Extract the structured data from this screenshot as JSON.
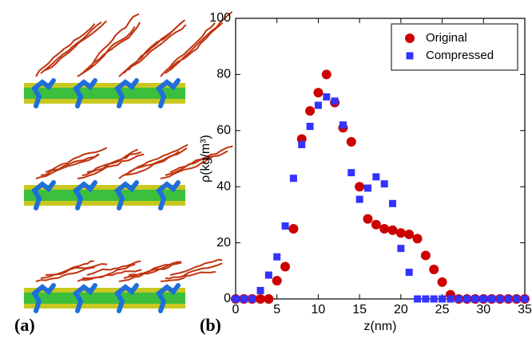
{
  "chart_data": {
    "type": "scatter",
    "panel_labels": [
      "(a)",
      "(b)"
    ],
    "xlabel": "z(nm)",
    "ylabel": "ρ(kg/m³)",
    "xlim": [
      0,
      35
    ],
    "xticks": [
      0,
      5,
      10,
      15,
      20,
      25,
      30,
      35
    ],
    "ylim": [
      0,
      100
    ],
    "yticks": [
      0,
      20,
      40,
      60,
      80,
      100
    ],
    "legend": "upper right",
    "series": [
      {
        "name": "Original",
        "color": "#cc0000",
        "marker": "circle",
        "x": [
          0,
          1,
          2,
          3,
          4,
          5,
          6,
          7,
          8,
          9,
          10,
          11,
          12,
          13,
          14,
          15,
          16,
          17,
          18,
          19,
          20,
          21,
          22,
          23,
          24,
          25,
          26,
          27,
          28,
          29,
          30,
          31,
          32,
          33,
          34,
          35
        ],
        "values": [
          0,
          0,
          0,
          0,
          0,
          6.5,
          11.5,
          25,
          57,
          67,
          73.5,
          80,
          70,
          61,
          56,
          40,
          28.5,
          26.5,
          25,
          24.5,
          23.5,
          23,
          21.5,
          15.5,
          10.5,
          6,
          1.5,
          0,
          0,
          0,
          0,
          0,
          0,
          0,
          0,
          0
        ]
      },
      {
        "name": "Compressed",
        "color": "#3333ff",
        "marker": "square",
        "x": [
          0,
          1,
          2,
          3,
          4,
          5,
          6,
          7,
          8,
          9,
          10,
          11,
          12,
          13,
          14,
          15,
          16,
          17,
          18,
          19,
          20,
          21,
          22,
          23,
          24,
          25,
          26,
          27,
          28,
          29,
          30,
          31,
          32,
          33,
          34,
          35
        ],
        "values": [
          0,
          0,
          0,
          3,
          8.5,
          15,
          26,
          43,
          55,
          61.5,
          69,
          72,
          70.5,
          62,
          45,
          35.5,
          39.5,
          43.5,
          41,
          34,
          18,
          9.5,
          0,
          0,
          0,
          0,
          0,
          0,
          0,
          0,
          0,
          0,
          0,
          0,
          0,
          0
        ]
      }
    ]
  }
}
